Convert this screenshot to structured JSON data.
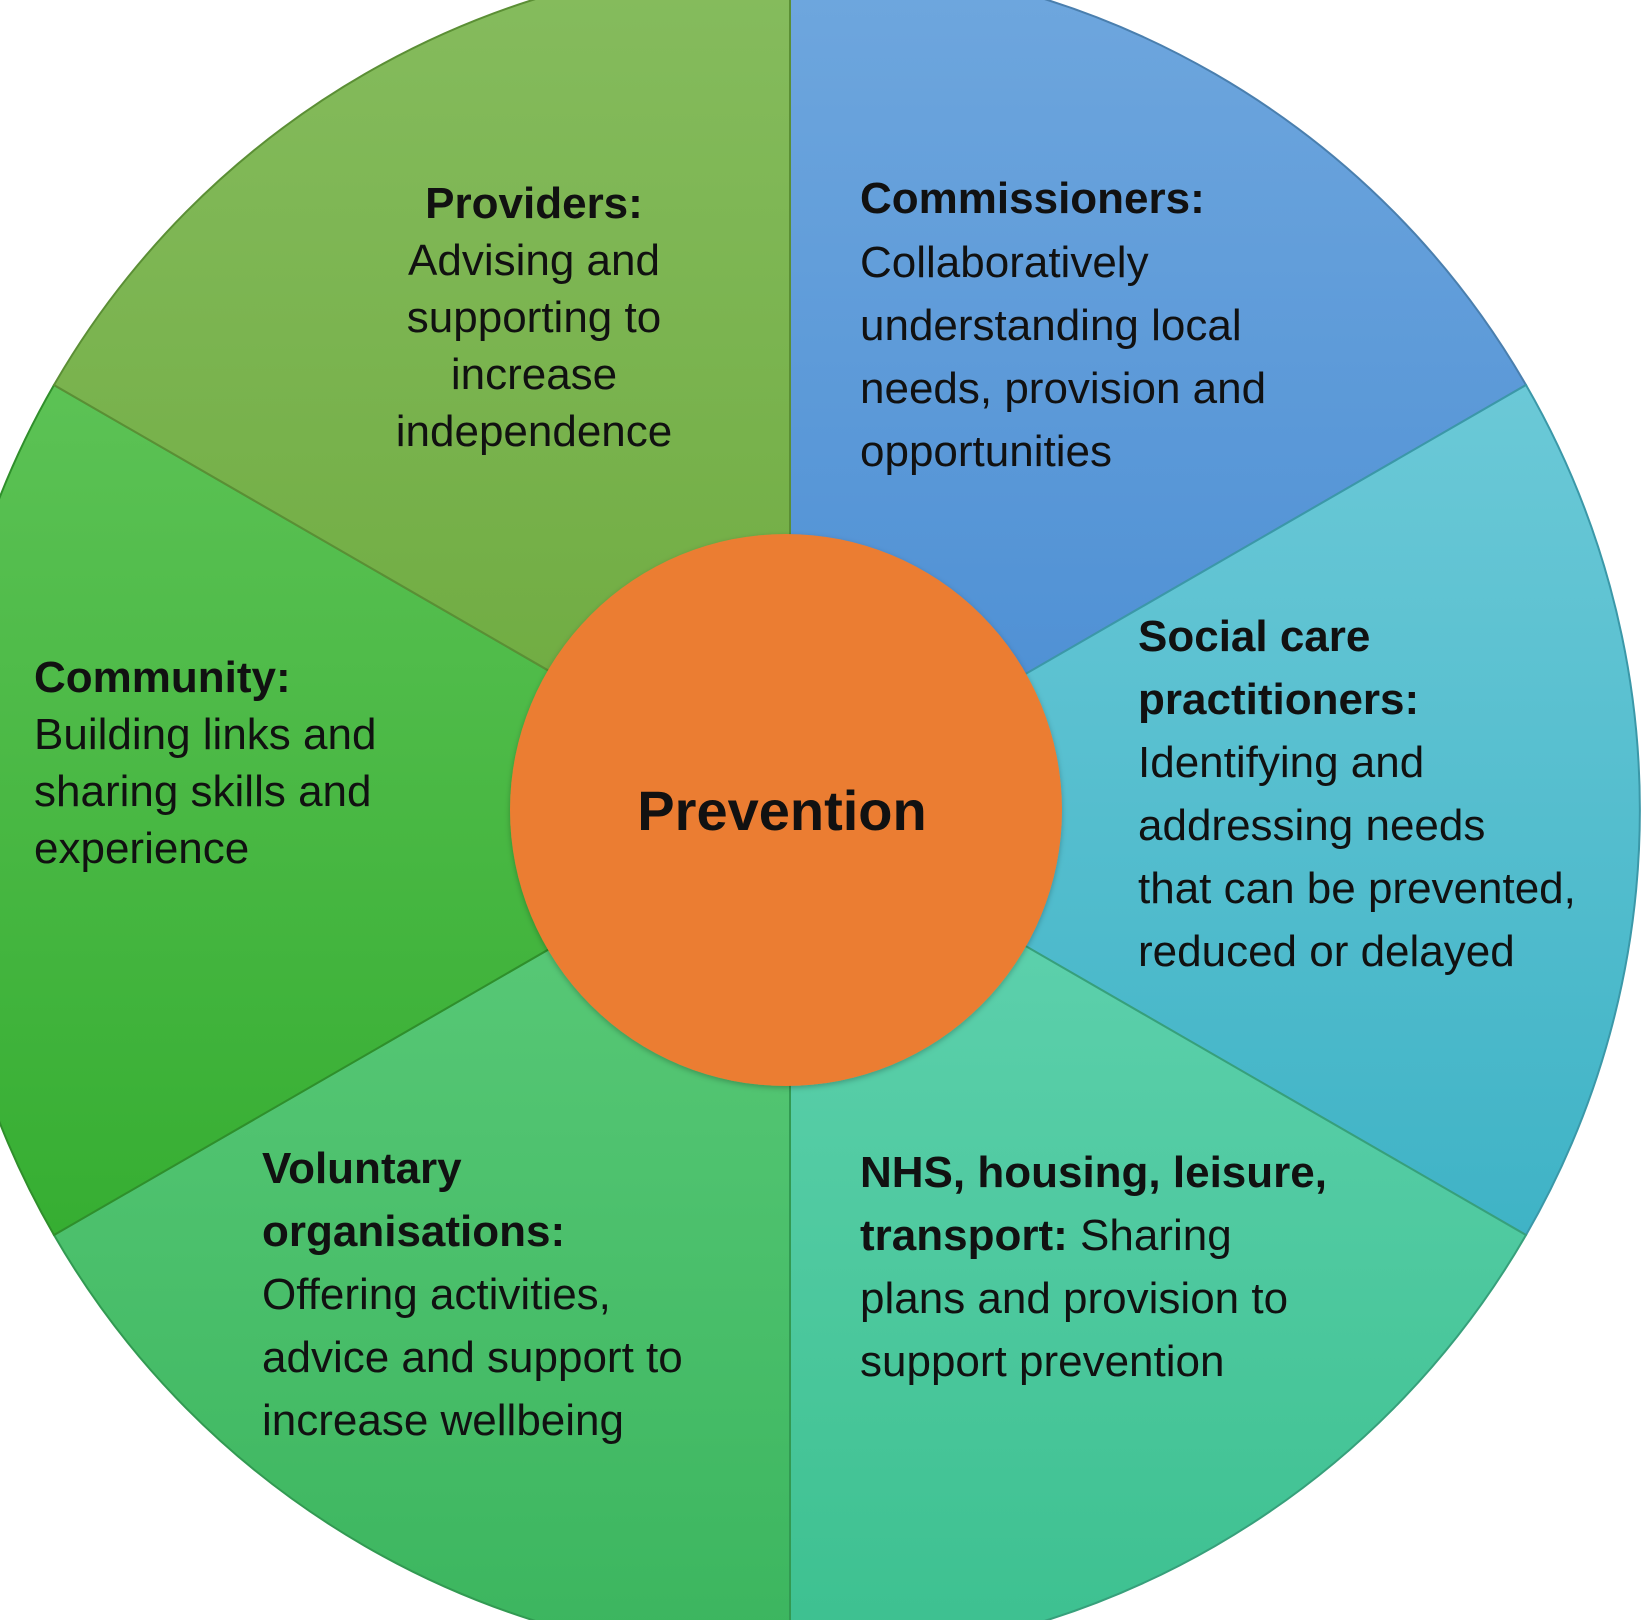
{
  "center": {
    "label": "Prevention",
    "color": "#EB7D33"
  },
  "segments": [
    {
      "id": "commissioners",
      "title": "Commissioners:",
      "lines": [
        "Collaboratively",
        "understanding local",
        "needs, provision and",
        "opportunities"
      ],
      "color_top": "#6FA7DE",
      "color_bottom": "#4A8DD3"
    },
    {
      "id": "social-care-practitioners",
      "title_lines": [
        "Social care",
        "practitioners:"
      ],
      "lines": [
        "Identifying and",
        "addressing needs",
        "that can be prevented,",
        "reduced or delayed"
      ],
      "color_top": "#6BC9D7",
      "color_bottom": "#3FB3C6"
    },
    {
      "id": "nhs-housing-leisure-transport",
      "title_lines": [
        "NHS, housing, leisure,",
        "transport:"
      ],
      "title_tail": " Sharing",
      "lines": [
        "plans and provision to",
        "support prevention"
      ],
      "color_top": "#62D3B1",
      "color_bottom": "#3CC08F"
    },
    {
      "id": "voluntary-organisations",
      "title_lines": [
        "Voluntary",
        "organisations:"
      ],
      "lines": [
        "Offering activities,",
        "advice and support to",
        "increase wellbeing"
      ],
      "color_top": "#5CCB7A",
      "color_bottom": "#3BB55E"
    },
    {
      "id": "community",
      "title": "Community:",
      "lines": [
        "Building links and",
        "sharing skills and",
        "experience"
      ],
      "color_top": "#5CC255",
      "color_bottom": "#36AE32"
    },
    {
      "id": "providers",
      "title": "Providers:",
      "lines": [
        "Advising and",
        "supporting to",
        "increase",
        "independence"
      ],
      "color_top": "#86BC5E",
      "color_bottom": "#6DAA3E"
    }
  ]
}
